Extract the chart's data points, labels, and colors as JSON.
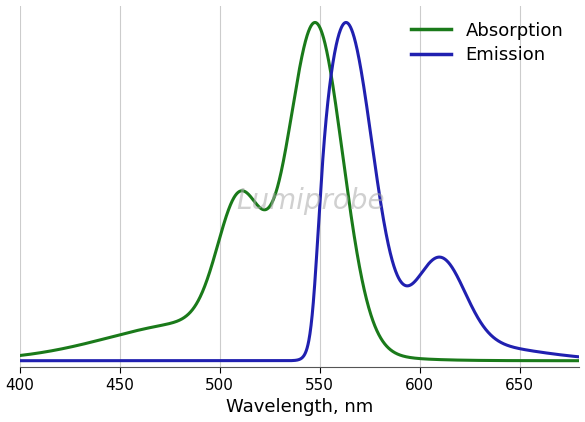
{
  "title": "",
  "xlabel": "Wavelength, nm",
  "ylabel": "",
  "xlim": [
    400,
    680
  ],
  "ylim": [
    -0.02,
    1.05
  ],
  "absorption_color": "#1a7a1a",
  "emission_color": "#2020b0",
  "background_color": "#ffffff",
  "grid_color": "#cccccc",
  "legend_labels": [
    "Absorption",
    "Emission"
  ],
  "xlabel_fontsize": 13,
  "tick_fontsize": 11,
  "legend_fontsize": 13,
  "line_width": 2.2
}
